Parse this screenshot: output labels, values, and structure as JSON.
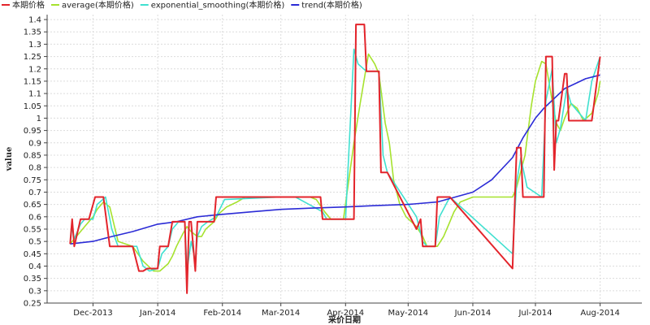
{
  "chart_data": {
    "type": "line",
    "xlabel": "采价日期",
    "ylabel": "value",
    "ylim": [
      0.25,
      1.42
    ],
    "xlim": [
      "2013-11-09",
      "2014-08-21"
    ],
    "grid": true,
    "legend_position": "top-left",
    "y_ticks": [
      0.25,
      0.3,
      0.35,
      0.4,
      0.45,
      0.5,
      0.55,
      0.6,
      0.65,
      0.7,
      0.75,
      0.8,
      0.85,
      0.9,
      0.95,
      1,
      1.05,
      1.1,
      1.15,
      1.2,
      1.25,
      1.3,
      1.35,
      1.4
    ],
    "x_ticks": [
      {
        "date": "2013-12-01",
        "label": "Dec-2013"
      },
      {
        "date": "2014-01-01",
        "label": "Jan-2014"
      },
      {
        "date": "2014-02-01",
        "label": "Feb-2014"
      },
      {
        "date": "2014-03-01",
        "label": "Mar-2014"
      },
      {
        "date": "2014-04-01",
        "label": "Apr-2014"
      },
      {
        "date": "2014-05-01",
        "label": "May-2014"
      },
      {
        "date": "2014-06-01",
        "label": "Jun-2014"
      },
      {
        "date": "2014-07-01",
        "label": "Jul-2014"
      },
      {
        "date": "2014-08-01",
        "label": "Aug-2014"
      }
    ],
    "series": [
      {
        "name": "本期价格",
        "color": "#e3242b",
        "x": [
          "2013-11-20",
          "2013-11-21",
          "2013-11-22",
          "2013-11-25",
          "2013-11-26",
          "2013-11-29",
          "2013-12-02",
          "2013-12-06",
          "2013-12-09",
          "2013-12-12",
          "2013-12-13",
          "2013-12-20",
          "2013-12-23",
          "2013-12-25",
          "2013-12-27",
          "2014-01-01",
          "2014-01-02",
          "2014-01-06",
          "2014-01-08",
          "2014-01-10",
          "2014-01-14",
          "2014-01-15",
          "2014-01-16",
          "2014-01-17",
          "2014-01-19",
          "2014-01-20",
          "2014-01-21",
          "2014-01-22",
          "2014-01-24",
          "2014-01-28",
          "2014-01-29",
          "2014-02-28",
          "2014-03-01",
          "2014-03-05",
          "2014-03-07",
          "2014-03-20",
          "2014-03-21",
          "2014-03-22",
          "2014-03-23",
          "2014-03-31",
          "2014-04-05",
          "2014-04-06",
          "2014-04-10",
          "2014-04-11",
          "2014-04-12",
          "2014-04-13",
          "2014-04-17",
          "2014-04-18",
          "2014-04-20",
          "2014-04-21",
          "2014-05-05",
          "2014-05-07",
          "2014-05-08",
          "2014-05-09",
          "2014-05-10",
          "2014-05-13",
          "2014-05-14",
          "2014-05-15",
          "2014-05-21",
          "2014-06-20",
          "2014-06-22",
          "2014-06-24",
          "2014-06-25",
          "2014-07-04",
          "2014-07-05",
          "2014-07-06",
          "2014-07-09",
          "2014-07-10",
          "2014-07-11",
          "2014-07-12",
          "2014-07-15",
          "2014-07-16",
          "2014-07-17",
          "2014-07-25",
          "2014-07-28",
          "2014-08-01"
        ],
        "values": [
          0.49,
          0.59,
          0.48,
          0.59,
          0.59,
          0.59,
          0.68,
          0.68,
          0.48,
          0.48,
          0.48,
          0.48,
          0.38,
          0.38,
          0.39,
          0.39,
          0.48,
          0.48,
          0.58,
          0.58,
          0.58,
          0.29,
          0.58,
          0.58,
          0.38,
          0.58,
          0.58,
          0.58,
          0.58,
          0.58,
          0.68,
          0.68,
          0.68,
          0.68,
          0.68,
          0.68,
          0.59,
          0.59,
          0.59,
          0.59,
          0.59,
          1.38,
          1.38,
          1.19,
          1.19,
          1.19,
          1.19,
          0.78,
          0.78,
          0.78,
          0.55,
          0.59,
          0.48,
          0.48,
          0.48,
          0.48,
          0.48,
          0.68,
          0.68,
          0.39,
          0.88,
          0.88,
          0.68,
          0.68,
          0.68,
          1.25,
          1.25,
          0.79,
          0.99,
          0.99,
          1.18,
          1.18,
          0.99,
          0.99,
          0.99,
          1.25
        ]
      },
      {
        "name": "average(本期价格)",
        "color": "#a6e22e",
        "x": [
          "2013-11-20",
          "2013-11-23",
          "2013-11-27",
          "2013-12-01",
          "2013-12-03",
          "2013-12-06",
          "2013-12-09",
          "2013-12-11",
          "2013-12-13",
          "2013-12-20",
          "2013-12-25",
          "2013-12-30",
          "2014-01-02",
          "2014-01-06",
          "2014-01-08",
          "2014-01-10",
          "2014-01-13",
          "2014-01-15",
          "2014-01-17",
          "2014-01-20",
          "2014-01-22",
          "2014-01-24",
          "2014-01-28",
          "2014-01-30",
          "2014-02-03",
          "2014-02-08",
          "2014-02-12",
          "2014-03-05",
          "2014-03-10",
          "2014-03-15",
          "2014-03-18",
          "2014-03-22",
          "2014-03-25",
          "2014-03-31",
          "2014-04-05",
          "2014-04-08",
          "2014-04-12",
          "2014-04-15",
          "2014-04-17",
          "2014-04-20",
          "2014-04-22",
          "2014-04-24",
          "2014-04-27",
          "2014-04-30",
          "2014-05-05",
          "2014-05-08",
          "2014-05-10",
          "2014-05-12",
          "2014-05-15",
          "2014-05-18",
          "2014-05-21",
          "2014-05-23",
          "2014-05-26",
          "2014-06-01",
          "2014-06-05",
          "2014-06-15",
          "2014-06-20",
          "2014-06-22",
          "2014-06-26",
          "2014-06-29",
          "2014-07-01",
          "2014-07-04",
          "2014-07-06",
          "2014-07-09",
          "2014-07-11",
          "2014-07-13",
          "2014-07-15",
          "2014-07-18",
          "2014-07-21",
          "2014-07-24",
          "2014-07-28",
          "2014-07-31",
          "2014-08-01"
        ],
        "values": [
          0.49,
          0.52,
          0.56,
          0.6,
          0.63,
          0.66,
          0.64,
          0.57,
          0.5,
          0.48,
          0.42,
          0.38,
          0.38,
          0.41,
          0.44,
          0.48,
          0.53,
          0.56,
          0.54,
          0.52,
          0.52,
          0.55,
          0.58,
          0.61,
          0.64,
          0.66,
          0.68,
          0.68,
          0.68,
          0.68,
          0.67,
          0.62,
          0.59,
          0.59,
          0.9,
          1.06,
          1.26,
          1.22,
          1.18,
          0.98,
          0.9,
          0.75,
          0.65,
          0.6,
          0.56,
          0.52,
          0.48,
          0.48,
          0.48,
          0.52,
          0.58,
          0.62,
          0.66,
          0.68,
          0.68,
          0.68,
          0.68,
          0.72,
          0.85,
          1.05,
          1.15,
          1.23,
          1.22,
          1.07,
          0.98,
          0.95,
          1.0,
          1.06,
          1.04,
          0.99,
          1.02,
          1.1,
          1.15
        ]
      },
      {
        "name": "exponential_smoothing(本期价格)",
        "color": "#40e0d0",
        "x": [
          "2013-11-20",
          "2013-11-21",
          "2013-11-22",
          "2013-11-25",
          "2013-11-27",
          "2013-12-01",
          "2013-12-03",
          "2013-12-07",
          "2013-12-10",
          "2013-12-13",
          "2013-12-22",
          "2013-12-25",
          "2013-12-28",
          "2014-01-01",
          "2014-01-03",
          "2014-01-06",
          "2014-01-08",
          "2014-01-11",
          "2014-01-14",
          "2014-01-15",
          "2014-01-17",
          "2014-01-19",
          "2014-01-20",
          "2014-01-22",
          "2014-01-25",
          "2014-01-29",
          "2014-02-02",
          "2014-03-01",
          "2014-03-06",
          "2014-03-08",
          "2014-03-21",
          "2014-03-23",
          "2014-04-01",
          "2014-04-05",
          "2014-04-07",
          "2014-04-11",
          "2014-04-13",
          "2014-04-17",
          "2014-04-19",
          "2014-04-21",
          "2014-05-05",
          "2014-05-08",
          "2014-05-10",
          "2014-05-14",
          "2014-05-16",
          "2014-05-21",
          "2014-06-20",
          "2014-06-22",
          "2014-06-24",
          "2014-06-27",
          "2014-07-04",
          "2014-07-06",
          "2014-07-09",
          "2014-07-11",
          "2014-07-13",
          "2014-07-16",
          "2014-07-18",
          "2014-07-25",
          "2014-07-28",
          "2014-08-01"
        ],
        "values": [
          0.49,
          0.56,
          0.51,
          0.57,
          0.59,
          0.59,
          0.65,
          0.68,
          0.55,
          0.48,
          0.48,
          0.4,
          0.38,
          0.39,
          0.45,
          0.48,
          0.55,
          0.58,
          0.58,
          0.38,
          0.5,
          0.42,
          0.52,
          0.56,
          0.58,
          0.6,
          0.67,
          0.68,
          0.68,
          0.68,
          0.62,
          0.59,
          0.59,
          1.28,
          1.22,
          1.19,
          1.19,
          1.19,
          0.85,
          0.78,
          0.6,
          0.5,
          0.48,
          0.48,
          0.6,
          0.68,
          0.45,
          0.74,
          0.84,
          0.72,
          0.68,
          1.07,
          1.2,
          0.9,
          0.96,
          1.12,
          1.06,
          0.99,
          1.15,
          1.25
        ]
      },
      {
        "name": "trend(本期价格)",
        "color": "#2b2bd6",
        "x": [
          "2013-11-20",
          "2013-12-01",
          "2013-12-10",
          "2013-12-20",
          "2014-01-01",
          "2014-01-10",
          "2014-01-20",
          "2014-02-01",
          "2014-02-15",
          "2014-03-01",
          "2014-03-15",
          "2014-04-01",
          "2014-04-15",
          "2014-05-01",
          "2014-05-15",
          "2014-06-01",
          "2014-06-10",
          "2014-06-20",
          "2014-06-25",
          "2014-07-01",
          "2014-07-05",
          "2014-07-10",
          "2014-07-15",
          "2014-07-20",
          "2014-07-25",
          "2014-08-01"
        ],
        "values": [
          0.49,
          0.5,
          0.52,
          0.54,
          0.57,
          0.58,
          0.6,
          0.61,
          0.62,
          0.63,
          0.635,
          0.64,
          0.645,
          0.65,
          0.66,
          0.7,
          0.75,
          0.84,
          0.92,
          1.0,
          1.04,
          1.08,
          1.12,
          1.14,
          1.16,
          1.175
        ]
      }
    ]
  }
}
